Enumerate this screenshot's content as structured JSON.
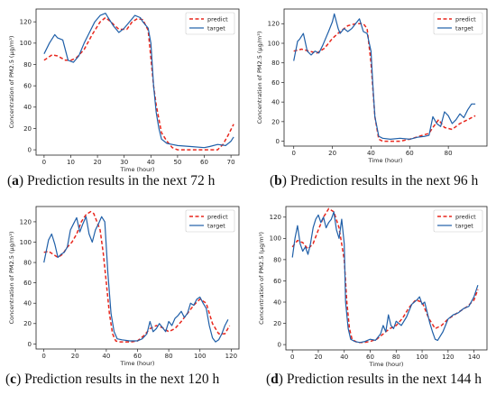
{
  "chart_data": [
    {
      "type": "line",
      "letter": "a",
      "caption": "Prediction results in the next 72 h",
      "xlabel": "Time (hour)",
      "ylabel": "Concentration of PM2.5 (μg/m³)",
      "xlim": [
        -3,
        73
      ],
      "ylim": [
        -5,
        132
      ],
      "xticks": [
        0,
        10,
        20,
        30,
        40,
        50,
        60,
        70
      ],
      "yticks": [
        0,
        20,
        40,
        60,
        80,
        100,
        120
      ],
      "grid": false,
      "legend_position": "top-right",
      "series": [
        {
          "name": "predict",
          "color": "#e8271d",
          "dash": true,
          "x": [
            0,
            3,
            5,
            8,
            10,
            12,
            15,
            18,
            21,
            23,
            25,
            28,
            31,
            33,
            35,
            37,
            39,
            41,
            42,
            44,
            46,
            48,
            50,
            55,
            60,
            65,
            67,
            69,
            71
          ],
          "y": [
            84,
            89,
            88,
            84,
            84,
            86,
            94,
            108,
            120,
            124,
            120,
            113,
            113,
            120,
            123,
            122,
            112,
            60,
            42,
            16,
            8,
            2,
            0,
            0,
            0,
            0,
            5,
            14,
            24
          ]
        },
        {
          "name": "target",
          "color": "#1f5fa8",
          "dash": false,
          "x": [
            0,
            2,
            4,
            5,
            7,
            9,
            11,
            13,
            15,
            17,
            19,
            21,
            23,
            24,
            26,
            28,
            30,
            32,
            34,
            36,
            37,
            39,
            40,
            41,
            42,
            43,
            44,
            46,
            48,
            50,
            55,
            60,
            62,
            65,
            68,
            70,
            71
          ],
          "y": [
            90,
            100,
            108,
            105,
            103,
            84,
            82,
            88,
            100,
            110,
            120,
            126,
            128,
            124,
            116,
            110,
            114,
            120,
            126,
            124,
            120,
            114,
            100,
            60,
            35,
            20,
            10,
            6,
            5,
            4,
            3,
            2,
            3,
            5,
            4,
            8,
            12
          ]
        }
      ]
    },
    {
      "type": "line",
      "letter": "b",
      "caption": "Prediction results in the next 96 h",
      "xlabel": "Time (hour)",
      "ylabel": "Concentration of PM2.5 (μg/m³)",
      "xlim": [
        -5,
        100
      ],
      "ylim": [
        -5,
        135
      ],
      "xticks": [
        0,
        20,
        40,
        60,
        80
      ],
      "yticks": [
        0,
        20,
        40,
        60,
        80,
        100,
        120
      ],
      "grid": false,
      "legend_position": "top-right",
      "series": [
        {
          "name": "predict",
          "color": "#e8271d",
          "dash": true,
          "x": [
            0,
            4,
            8,
            12,
            16,
            20,
            24,
            28,
            32,
            36,
            38,
            40,
            42,
            44,
            46,
            50,
            55,
            60,
            65,
            70,
            72,
            75,
            78,
            82,
            86,
            90,
            94
          ],
          "y": [
            92,
            94,
            92,
            90,
            95,
            105,
            112,
            118,
            120,
            120,
            115,
            80,
            25,
            2,
            0,
            0,
            0,
            2,
            5,
            8,
            14,
            22,
            14,
            12,
            18,
            22,
            26
          ]
        },
        {
          "name": "target",
          "color": "#1f5fa8",
          "dash": false,
          "x": [
            0,
            2,
            3,
            5,
            7,
            9,
            11,
            13,
            15,
            18,
            20,
            21,
            23,
            24,
            26,
            28,
            30,
            32,
            34,
            36,
            38,
            40,
            41,
            42,
            44,
            46,
            50,
            55,
            60,
            64,
            68,
            70,
            72,
            74,
            76,
            78,
            80,
            82,
            84,
            86,
            88,
            90,
            92,
            94
          ],
          "y": [
            82,
            102,
            104,
            110,
            92,
            88,
            92,
            90,
            98,
            112,
            122,
            130,
            115,
            110,
            115,
            112,
            115,
            120,
            125,
            112,
            110,
            92,
            55,
            25,
            5,
            3,
            2,
            3,
            2,
            4,
            5,
            6,
            25,
            18,
            15,
            30,
            26,
            18,
            22,
            28,
            24,
            32,
            38,
            38
          ]
        }
      ]
    },
    {
      "type": "line",
      "letter": "c",
      "caption": "Prediction results in the next 120 h",
      "xlabel": "Time (hour)",
      "ylabel": "Concentration of PM2.5 (μg/m³)",
      "xlim": [
        -5,
        125
      ],
      "ylim": [
        -5,
        135
      ],
      "xticks": [
        0,
        20,
        40,
        60,
        80,
        100,
        120
      ],
      "yticks": [
        0,
        20,
        40,
        60,
        80,
        100,
        120
      ],
      "grid": false,
      "legend_position": "top-right",
      "series": [
        {
          "name": "predict",
          "color": "#e8271d",
          "dash": true,
          "x": [
            0,
            3,
            6,
            9,
            12,
            15,
            18,
            21,
            24,
            27,
            30,
            32,
            34,
            36,
            38,
            40,
            42,
            44,
            46,
            48,
            52,
            56,
            60,
            64,
            68,
            72,
            76,
            80,
            84,
            88,
            92,
            96,
            100,
            104,
            108,
            112,
            116,
            119
          ],
          "y": [
            90,
            91,
            88,
            85,
            88,
            95,
            100,
            108,
            120,
            127,
            130,
            128,
            120,
            112,
            90,
            60,
            30,
            10,
            3,
            2,
            2,
            2,
            3,
            8,
            15,
            18,
            16,
            12,
            15,
            22,
            30,
            38,
            44,
            40,
            20,
            10,
            10,
            18
          ]
        },
        {
          "name": "target",
          "color": "#1f5fa8",
          "dash": false,
          "x": [
            0,
            3,
            5,
            7,
            9,
            11,
            13,
            15,
            17,
            19,
            21,
            23,
            25,
            27,
            29,
            31,
            33,
            35,
            37,
            39,
            41,
            43,
            45,
            47,
            50,
            55,
            60,
            63,
            66,
            68,
            70,
            72,
            74,
            76,
            78,
            80,
            82,
            84,
            86,
            88,
            90,
            92,
            94,
            96,
            98,
            100,
            102,
            104,
            106,
            108,
            110,
            112,
            114,
            116,
            118
          ],
          "y": [
            80,
            102,
            108,
            98,
            85,
            88,
            90,
            95,
            112,
            118,
            124,
            110,
            118,
            125,
            108,
            100,
            112,
            118,
            125,
            120,
            70,
            30,
            12,
            5,
            4,
            3,
            3,
            5,
            10,
            22,
            12,
            15,
            20,
            16,
            12,
            22,
            18,
            25,
            28,
            32,
            26,
            30,
            40,
            38,
            44,
            46,
            40,
            35,
            18,
            6,
            2,
            4,
            10,
            18,
            24
          ]
        }
      ]
    },
    {
      "type": "line",
      "letter": "d",
      "caption": "Prediction results in the next 144 h",
      "xlabel": "Time (hour)",
      "ylabel": "Concentration of PM2.5 (μg/m³)",
      "xlim": [
        -5,
        150
      ],
      "ylim": [
        -5,
        130
      ],
      "xticks": [
        0,
        20,
        40,
        60,
        80,
        100,
        120,
        140
      ],
      "yticks": [
        0,
        20,
        40,
        60,
        80,
        100,
        120
      ],
      "grid": false,
      "legend_position": "top-right",
      "series": [
        {
          "name": "predict",
          "color": "#e8271d",
          "dash": true,
          "x": [
            0,
            4,
            8,
            12,
            16,
            20,
            24,
            28,
            32,
            36,
            40,
            42,
            44,
            46,
            50,
            55,
            60,
            65,
            70,
            75,
            80,
            85,
            90,
            95,
            100,
            105,
            110,
            115,
            120,
            125,
            130,
            135,
            140,
            143
          ],
          "y": [
            92,
            98,
            96,
            90,
            95,
            108,
            120,
            128,
            125,
            110,
            80,
            40,
            15,
            5,
            2,
            2,
            3,
            5,
            10,
            15,
            18,
            25,
            35,
            42,
            40,
            25,
            15,
            18,
            24,
            28,
            32,
            36,
            42,
            52
          ]
        },
        {
          "name": "target",
          "color": "#1f5fa8",
          "dash": false,
          "x": [
            0,
            2,
            4,
            6,
            8,
            10,
            12,
            14,
            16,
            18,
            20,
            22,
            24,
            26,
            28,
            30,
            32,
            34,
            36,
            38,
            40,
            41,
            43,
            45,
            48,
            52,
            56,
            60,
            64,
            68,
            70,
            72,
            74,
            76,
            78,
            80,
            84,
            88,
            92,
            96,
            98,
            100,
            102,
            104,
            106,
            108,
            110,
            112,
            114,
            116,
            118,
            120,
            124,
            128,
            132,
            136,
            140,
            143
          ],
          "y": [
            82,
            100,
            112,
            95,
            88,
            92,
            85,
            95,
            110,
            118,
            122,
            115,
            120,
            110,
            115,
            118,
            125,
            108,
            100,
            118,
            95,
            40,
            15,
            5,
            3,
            2,
            3,
            5,
            4,
            10,
            18,
            12,
            28,
            18,
            15,
            22,
            18,
            26,
            38,
            42,
            45,
            38,
            40,
            30,
            20,
            12,
            5,
            4,
            8,
            12,
            18,
            24,
            28,
            30,
            34,
            36,
            45,
            56
          ]
        }
      ]
    }
  ]
}
